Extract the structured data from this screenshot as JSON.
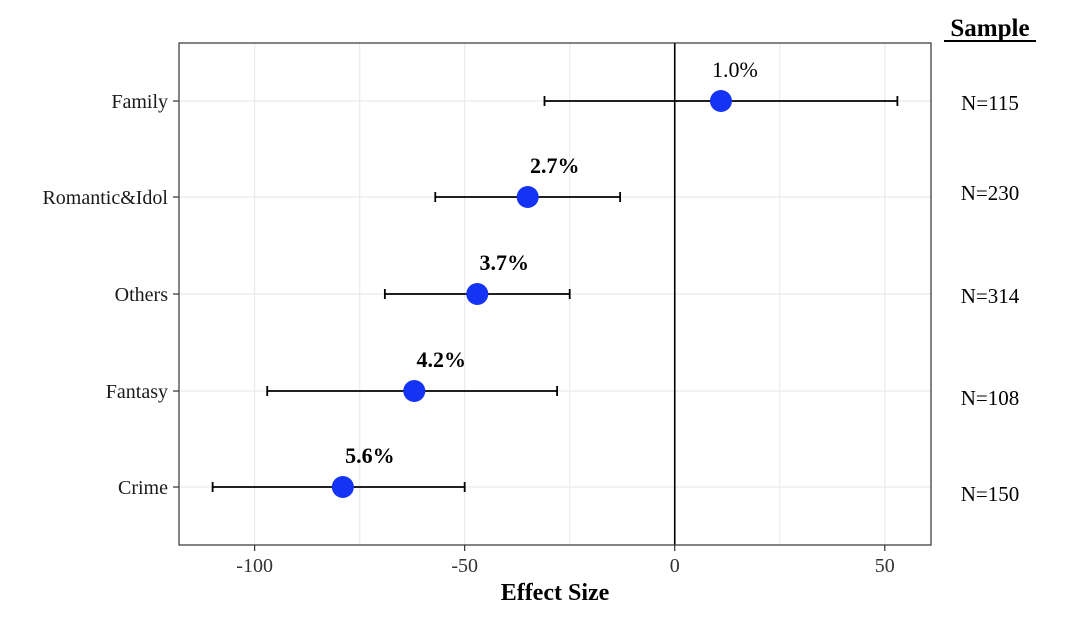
{
  "chart_data": {
    "type": "scatter",
    "subtype": "forest-plot",
    "xlabel": "Effect Size",
    "ylabel": "",
    "xlim": [
      -118,
      61
    ],
    "xticks": [
      -100,
      -50,
      0,
      50
    ],
    "xtick_labels": [
      "-100",
      "-50",
      "0",
      "50"
    ],
    "reference_line_x": 0,
    "grid": true,
    "categories": [
      "Family",
      "Romantic&Idol",
      "Others",
      "Fantasy",
      "Crime"
    ],
    "estimates": [
      11,
      -35,
      -47,
      -62,
      -79
    ],
    "ci_low": [
      -31,
      -57,
      -69,
      -97,
      -110
    ],
    "ci_high": [
      53,
      -13,
      -25,
      -28,
      -50
    ],
    "point_labels": [
      "1.0%",
      "2.7%",
      "3.7%",
      "4.2%",
      "5.6%"
    ],
    "point_label_colors": [
      "#ff0000",
      "#000000",
      "#000000",
      "#000000",
      "#000000"
    ],
    "sample_sizes": [
      "N=115",
      "N=230",
      "N=314",
      "N=108",
      "N=150"
    ],
    "sample_header": "Sample",
    "point_color": "#1533f5"
  }
}
